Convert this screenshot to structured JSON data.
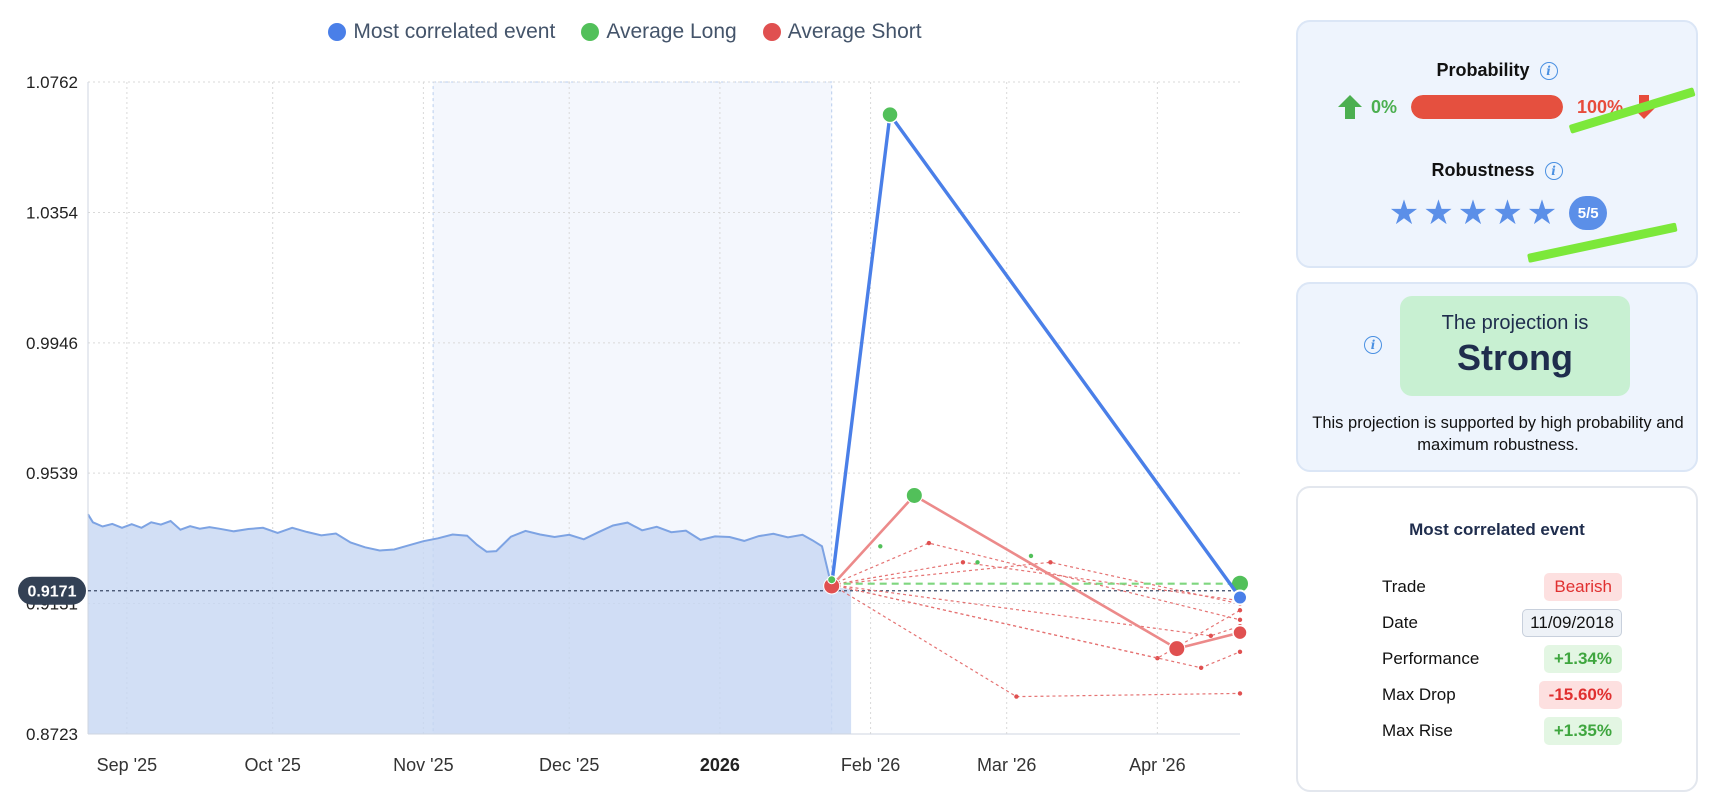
{
  "legend": [
    {
      "label": "Most correlated event",
      "color": "#4a7fe8"
    },
    {
      "label": "Average Long",
      "color": "#52c05a"
    },
    {
      "label": "Average Short",
      "color": "#e05050"
    }
  ],
  "chart_data": {
    "type": "line",
    "y_ticks": [
      "1.0762",
      "1.0354",
      "0.9946",
      "0.9539",
      "0.9131",
      "0.8723"
    ],
    "ylim": [
      0.8723,
      1.0762
    ],
    "x_ticks": [
      {
        "label": "Sep '25",
        "date": "2025-09-01",
        "bold": false
      },
      {
        "label": "Oct '25",
        "date": "2025-10-01",
        "bold": false
      },
      {
        "label": "Nov '25",
        "date": "2025-11-01",
        "bold": false
      },
      {
        "label": "Dec '25",
        "date": "2025-12-01",
        "bold": false
      },
      {
        "label": "2026",
        "date": "2026-01-01",
        "bold": true
      },
      {
        "label": "Feb '26",
        "date": "2026-02-01",
        "bold": false
      },
      {
        "label": "Mar '26",
        "date": "2026-03-01",
        "bold": false
      },
      {
        "label": "Apr '26",
        "date": "2026-04-01",
        "bold": false
      }
    ],
    "xlim": [
      "2025-08-24",
      "2026-04-18"
    ],
    "current_price": {
      "label": "0.9171",
      "value": 0.9171
    },
    "highlight_range": [
      "2025-11-03",
      "2026-01-24"
    ],
    "history": {
      "name": "Price",
      "color": "#7da3e3",
      "points": [
        [
          "2025-08-24",
          0.941
        ],
        [
          "2025-08-25",
          0.9385
        ],
        [
          "2025-08-27",
          0.9372
        ],
        [
          "2025-08-29",
          0.938
        ],
        [
          "2025-08-31",
          0.9368
        ],
        [
          "2025-09-02",
          0.9379
        ],
        [
          "2025-09-04",
          0.9368
        ],
        [
          "2025-09-06",
          0.9385
        ],
        [
          "2025-09-08",
          0.9378
        ],
        [
          "2025-09-10",
          0.9389
        ],
        [
          "2025-09-12",
          0.9362
        ],
        [
          "2025-09-14",
          0.9373
        ],
        [
          "2025-09-16",
          0.9365
        ],
        [
          "2025-09-18",
          0.937
        ],
        [
          "2025-09-20",
          0.9365
        ],
        [
          "2025-09-23",
          0.9357
        ],
        [
          "2025-09-26",
          0.9364
        ],
        [
          "2025-09-29",
          0.9368
        ],
        [
          "2025-10-02",
          0.9352
        ],
        [
          "2025-10-05",
          0.9368
        ],
        [
          "2025-10-08",
          0.9355
        ],
        [
          "2025-10-11",
          0.9344
        ],
        [
          "2025-10-14",
          0.935
        ],
        [
          "2025-10-17",
          0.9322
        ],
        [
          "2025-10-20",
          0.9307
        ],
        [
          "2025-10-23",
          0.9297
        ],
        [
          "2025-10-26",
          0.93
        ],
        [
          "2025-10-29",
          0.9313
        ],
        [
          "2025-11-01",
          0.9326
        ],
        [
          "2025-11-04",
          0.9335
        ],
        [
          "2025-11-07",
          0.9347
        ],
        [
          "2025-11-10",
          0.9343
        ],
        [
          "2025-11-12",
          0.9315
        ],
        [
          "2025-11-14",
          0.9293
        ],
        [
          "2025-11-16",
          0.9295
        ],
        [
          "2025-11-19",
          0.934
        ],
        [
          "2025-11-22",
          0.9358
        ],
        [
          "2025-11-25",
          0.9347
        ],
        [
          "2025-11-28",
          0.9339
        ],
        [
          "2025-12-01",
          0.9346
        ],
        [
          "2025-12-04",
          0.9332
        ],
        [
          "2025-12-07",
          0.9354
        ],
        [
          "2025-12-10",
          0.9375
        ],
        [
          "2025-12-13",
          0.9384
        ],
        [
          "2025-12-16",
          0.936
        ],
        [
          "2025-12-19",
          0.9371
        ],
        [
          "2025-12-22",
          0.9354
        ],
        [
          "2025-12-25",
          0.9359
        ],
        [
          "2025-12-28",
          0.933
        ],
        [
          "2025-12-31",
          0.9341
        ],
        [
          "2026-01-03",
          0.9339
        ],
        [
          "2026-01-06",
          0.9327
        ],
        [
          "2026-01-09",
          0.9342
        ],
        [
          "2026-01-12",
          0.9349
        ],
        [
          "2026-01-15",
          0.9338
        ],
        [
          "2026-01-18",
          0.9346
        ],
        [
          "2026-01-20",
          0.9329
        ],
        [
          "2026-01-22",
          0.931
        ],
        [
          "2026-01-24",
          0.9183
        ]
      ]
    },
    "projected_history_end": {
      "date": "2026-01-28",
      "value": 0.9176
    },
    "most_correlated": {
      "name": "Most correlated event",
      "color": "#4a7fe8",
      "points": [
        [
          "2026-01-24",
          0.919
        ],
        [
          "2026-02-05",
          1.066
        ],
        [
          "2026-04-18",
          0.915
        ]
      ]
    },
    "average_long": {
      "name": "Average Long",
      "color": "#52c05a",
      "points": [
        [
          "2026-01-24",
          0.9193
        ],
        [
          "2026-04-18",
          0.9193
        ]
      ],
      "marker": [
        "2026-02-10",
        0.9469
      ],
      "dashed": true
    },
    "average_short": {
      "name": "Average Short",
      "color": "#e05050",
      "points": [
        [
          "2026-01-24",
          0.9186
        ],
        [
          "2026-02-10",
          0.9469
        ],
        [
          "2026-04-05",
          0.899
        ],
        [
          "2026-04-18",
          0.904
        ]
      ],
      "end_marker": [
        "2026-04-18",
        0.904
      ]
    },
    "short_scenarios": [
      [
        [
          "2026-01-24",
          0.919
        ],
        [
          "2026-02-13",
          0.932
        ],
        [
          "2026-04-18",
          0.908
        ]
      ],
      [
        [
          "2026-01-24",
          0.919
        ],
        [
          "2026-03-03",
          0.884
        ],
        [
          "2026-04-18",
          0.885
        ]
      ],
      [
        [
          "2026-01-24",
          0.919
        ],
        [
          "2026-04-01",
          0.896
        ],
        [
          "2026-04-18",
          0.911
        ]
      ],
      [
        [
          "2026-01-24",
          0.919
        ],
        [
          "2026-04-10",
          0.893
        ],
        [
          "2026-04-18",
          0.898
        ]
      ],
      [
        [
          "2026-01-24",
          0.919
        ],
        [
          "2026-03-10",
          0.926
        ],
        [
          "2026-04-18",
          0.913
        ]
      ],
      [
        [
          "2026-01-24",
          0.919
        ],
        [
          "2026-04-12",
          0.903
        ],
        [
          "2026-04-18",
          0.906
        ]
      ],
      [
        [
          "2026-01-24",
          0.919
        ],
        [
          "2026-02-20",
          0.926
        ],
        [
          "2026-04-18",
          0.914
        ]
      ]
    ],
    "long_scenarios_pts": [
      [
        "2026-02-03",
        0.931
      ],
      [
        "2026-02-23",
        0.926
      ],
      [
        "2026-03-06",
        0.928
      ]
    ]
  },
  "probability": {
    "title": "Probability",
    "long_pct": "0%",
    "short_pct": "100%",
    "short_fraction": 1.0
  },
  "robustness": {
    "title": "Robustness",
    "stars": 5,
    "max": 5,
    "badge": "5/5"
  },
  "projection": {
    "pre": "The projection is",
    "value": "Strong",
    "description": "This projection is supported by high probability and maximum robustness."
  },
  "most_correlated_event": {
    "title": "Most correlated event",
    "rows": [
      {
        "label": "Trade",
        "value": "Bearish",
        "style": "bear"
      },
      {
        "label": "Date",
        "value": "11/09/2018",
        "style": "date"
      },
      {
        "label": "Performance",
        "value": "+1.34%",
        "style": "pos"
      },
      {
        "label": "Max Drop",
        "value": "-15.60%",
        "style": "neg"
      },
      {
        "label": "Max Rise",
        "value": "+1.35%",
        "style": "pos"
      }
    ]
  },
  "colors": {
    "accent": "#5b8fe8",
    "area": "#c5d6f2",
    "highlight": "#f4f7fd",
    "grid": "#d9d9d9"
  }
}
